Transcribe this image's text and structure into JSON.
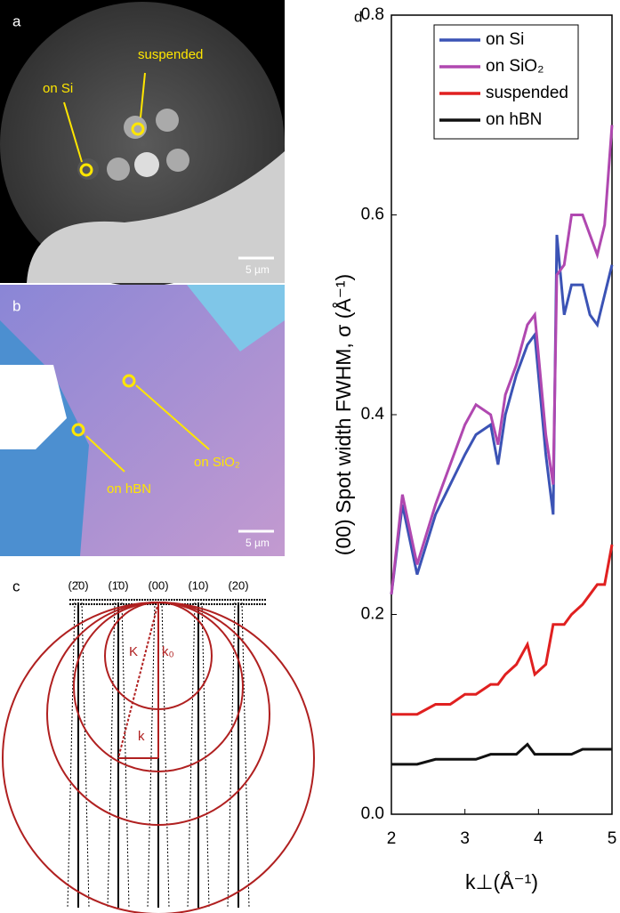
{
  "panel_a": {
    "label": "a",
    "annotations": [
      "suspended",
      "on Si"
    ],
    "scale_bar": "5 µm"
  },
  "panel_b": {
    "label": "b",
    "annotations": [
      "on SiO₂",
      "on hBN"
    ],
    "scale_bar": "5 µm"
  },
  "panel_c": {
    "label": "c",
    "rods": [
      "(2̄0)",
      "(1̄0)",
      "(00)",
      "(10)",
      "(20)"
    ],
    "vectors": [
      "K",
      "k₀",
      "k"
    ]
  },
  "chart_data": {
    "type": "line",
    "panel_label": "d",
    "x_label": "k⊥(Å⁻¹)",
    "y_label": "(00) Spot width FWHM, σ (Å⁻¹)",
    "x": [
      2.0,
      2.15,
      2.35,
      2.6,
      2.8,
      3.0,
      3.15,
      3.35,
      3.45,
      3.55,
      3.7,
      3.85,
      3.95,
      4.1,
      4.2,
      4.25,
      4.35,
      4.45,
      4.6,
      4.7,
      4.8,
      4.9,
      5.0
    ],
    "series": [
      {
        "name": "on Si",
        "color": "#3b53b5",
        "values": [
          0.22,
          0.31,
          0.24,
          0.3,
          0.33,
          0.36,
          0.38,
          0.39,
          0.35,
          0.4,
          0.44,
          0.47,
          0.48,
          0.36,
          0.3,
          0.58,
          0.5,
          0.53,
          0.53,
          0.5,
          0.49,
          0.52,
          0.55
        ]
      },
      {
        "name": "on SiO₂",
        "color": "#b048b0",
        "values": [
          0.22,
          0.32,
          0.25,
          0.31,
          0.35,
          0.39,
          0.41,
          0.4,
          0.37,
          0.42,
          0.45,
          0.49,
          0.5,
          0.38,
          0.33,
          0.54,
          0.55,
          0.6,
          0.6,
          0.58,
          0.56,
          0.59,
          0.69
        ]
      },
      {
        "name": "suspended",
        "color": "#e02020",
        "values": [
          0.1,
          0.1,
          0.1,
          0.11,
          0.11,
          0.12,
          0.12,
          0.13,
          0.13,
          0.14,
          0.15,
          0.17,
          0.14,
          0.15,
          0.19,
          0.19,
          0.19,
          0.2,
          0.21,
          0.22,
          0.23,
          0.23,
          0.27
        ]
      },
      {
        "name": "on hBN",
        "color": "#111111",
        "values": [
          0.05,
          0.05,
          0.05,
          0.055,
          0.055,
          0.055,
          0.055,
          0.06,
          0.06,
          0.06,
          0.06,
          0.07,
          0.06,
          0.06,
          0.06,
          0.06,
          0.06,
          0.06,
          0.065,
          0.065,
          0.065,
          0.065,
          0.065
        ]
      }
    ],
    "xlim": [
      2,
      5
    ],
    "ylim": [
      0,
      0.8
    ],
    "xticks": [
      2,
      3,
      4,
      5
    ],
    "yticks": [
      {
        "value": 0,
        "label": "0.0"
      },
      0.2,
      0.4,
      0.6,
      0.8
    ],
    "legend": "upper-left"
  }
}
